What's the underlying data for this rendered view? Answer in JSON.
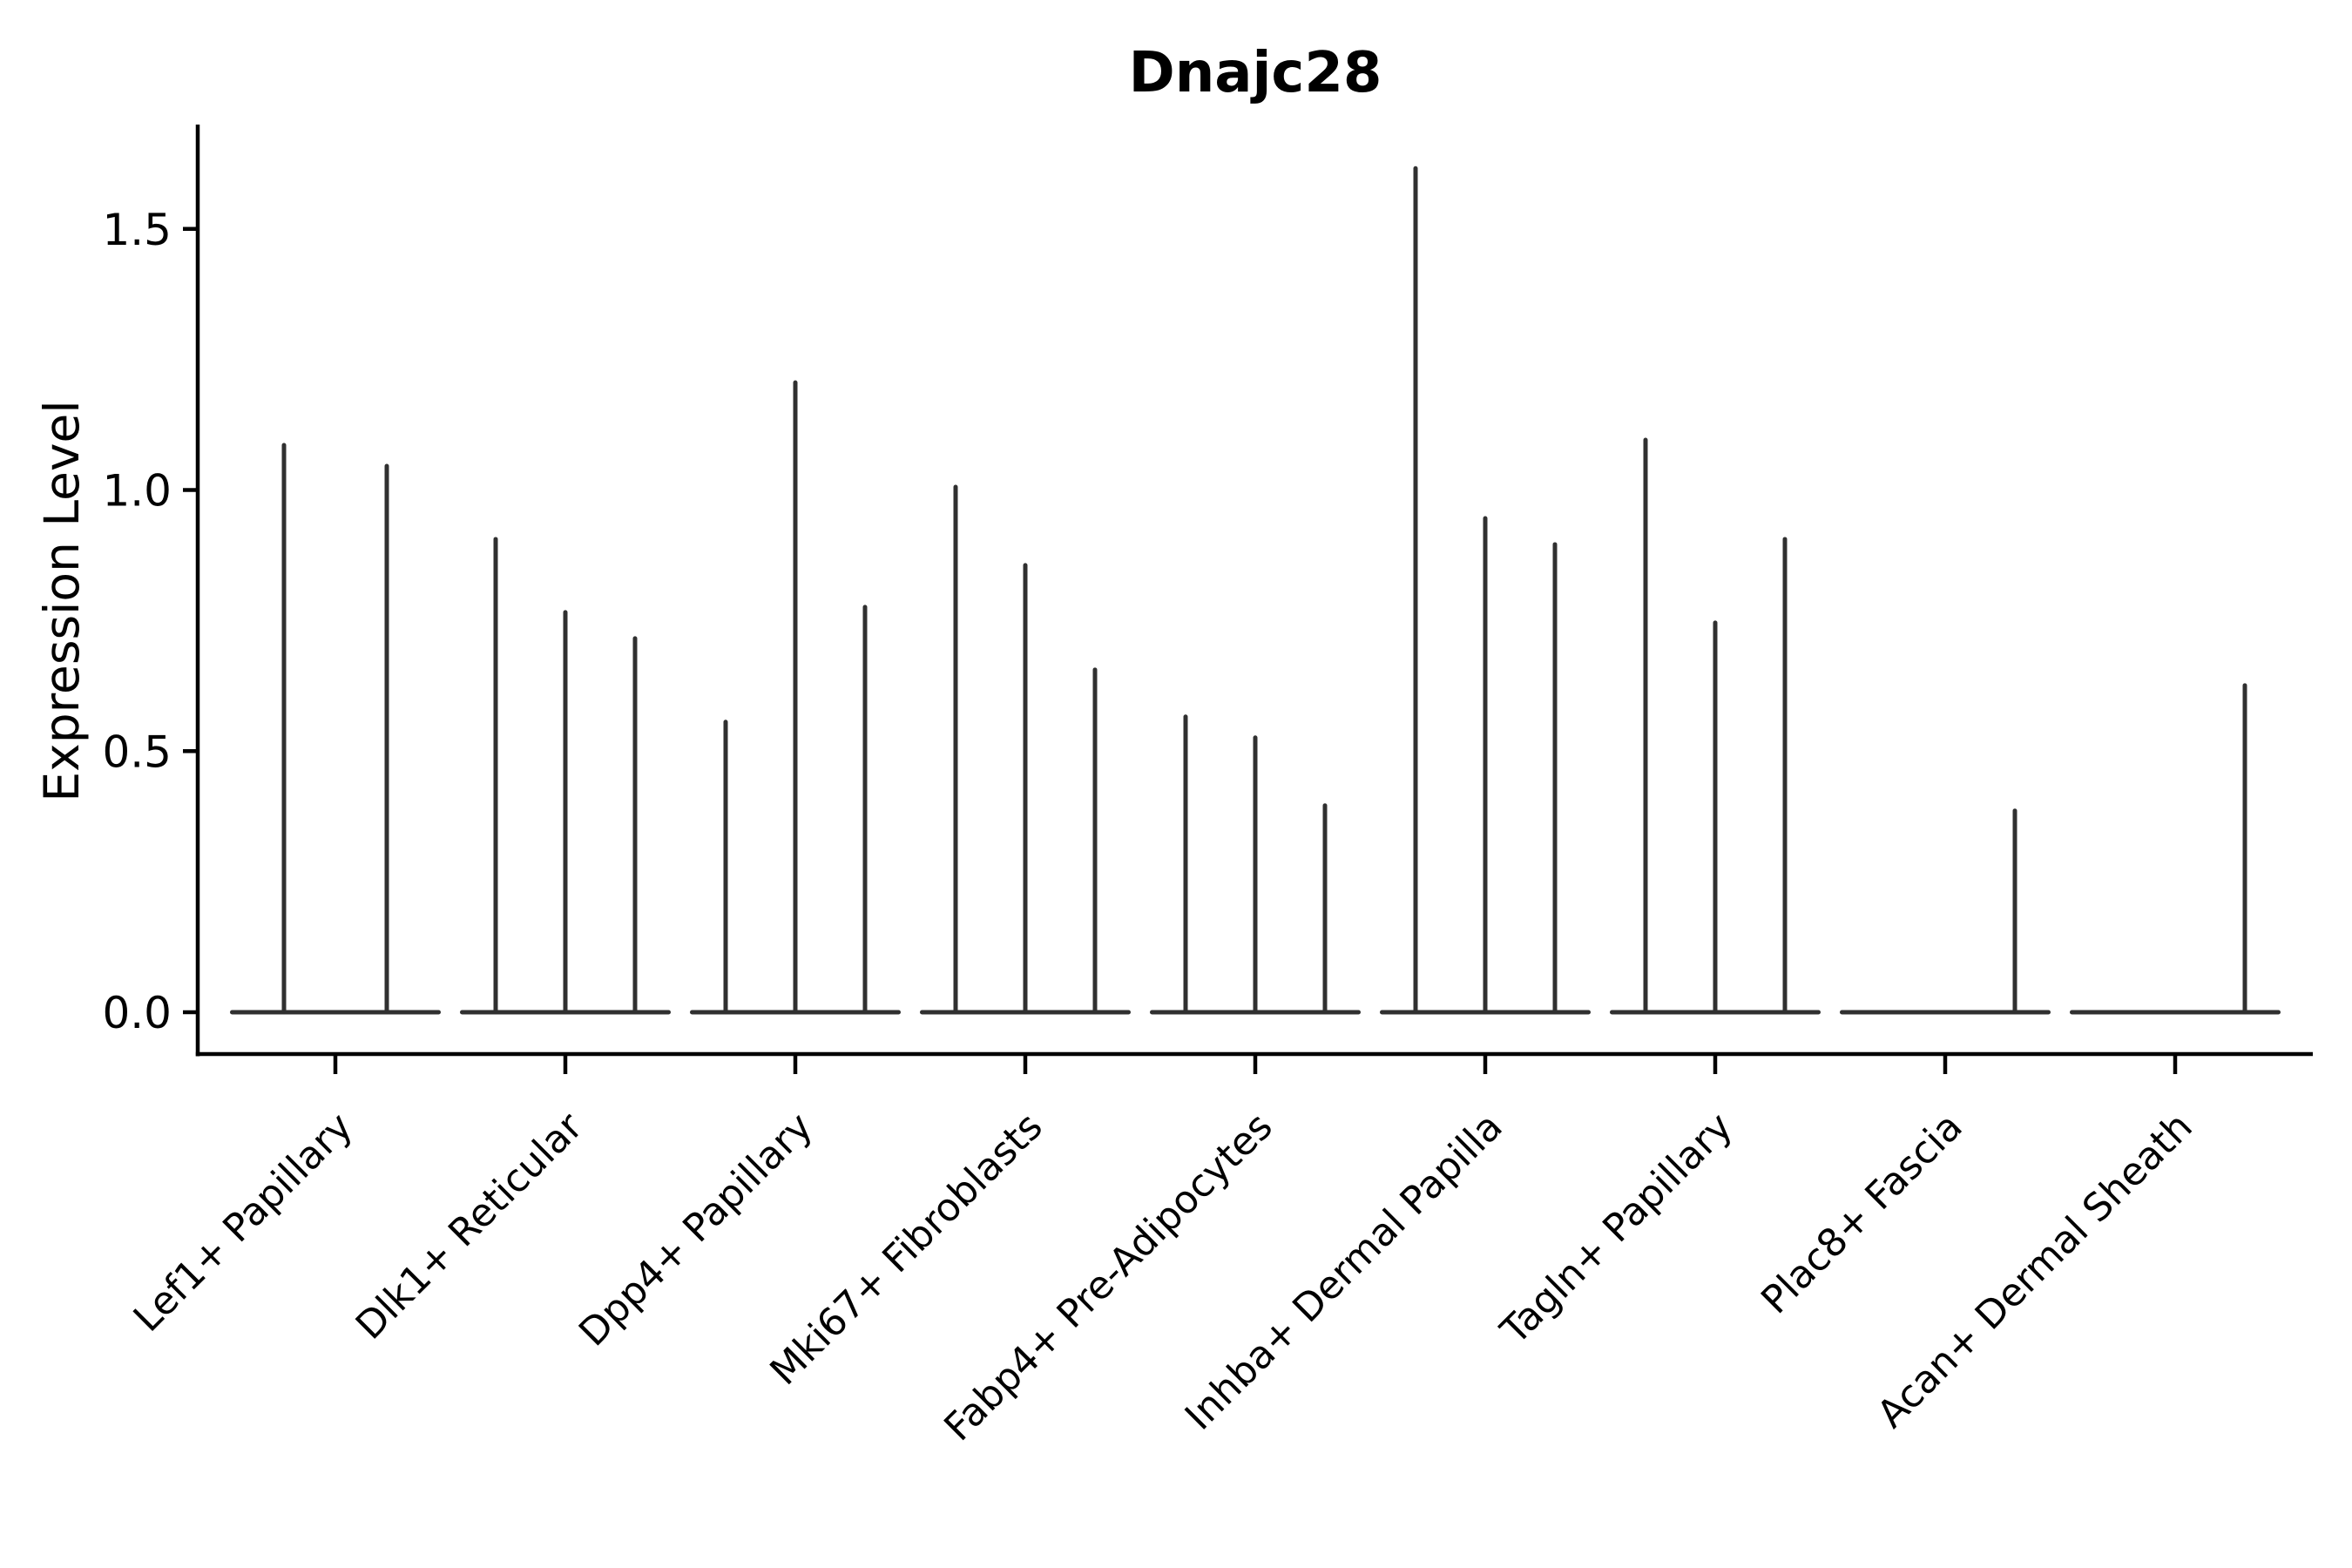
{
  "title": "Dnajc28",
  "chart_data": {
    "type": "violin",
    "title": "Dnajc28",
    "ylabel": "Expression Level",
    "xlabel": "",
    "yticks": [
      0.0,
      0.5,
      1.0,
      1.5
    ],
    "ytick_labels": [
      "0.0",
      "0.5",
      "1.0",
      "1.5"
    ],
    "ylim": [
      -0.08,
      1.7
    ],
    "grid": false,
    "legend": false,
    "x_tick_rotation_deg": 45,
    "categories": [
      "Lef1+ Papillary",
      "Dlk1+ Reticular",
      "Dpp4+ Papillary",
      "Mki67+ Fibroblasts",
      "Fabp4+ Pre-Adipocytes",
      "Inhba+ Dermal Papilla",
      "Tagln+ Papillary",
      "Plac8+ Fascia",
      "Acan+ Dermal Sheath"
    ],
    "series": [
      {
        "category": "Lef1+ Papillary",
        "violin_maxima": [
          1.09,
          1.05
        ]
      },
      {
        "category": "Dlk1+ Reticular",
        "violin_maxima": [
          0.91,
          0.77,
          0.72
        ]
      },
      {
        "category": "Dpp4+ Papillary",
        "violin_maxima": [
          0.56,
          1.21,
          0.78
        ]
      },
      {
        "category": "Mki67+ Fibroblasts",
        "violin_maxima": [
          1.01,
          0.86,
          0.66
        ]
      },
      {
        "category": "Fabp4+ Pre-Adipocytes",
        "violin_maxima": [
          0.57,
          0.53,
          0.4
        ]
      },
      {
        "category": "Inhba+ Dermal Papilla",
        "violin_maxima": [
          1.62,
          0.95,
          0.9
        ]
      },
      {
        "category": "Tagln+ Papillary",
        "violin_maxima": [
          1.1,
          0.75,
          0.91
        ]
      },
      {
        "category": "Plac8+ Fascia",
        "violin_maxima": [
          0.0,
          0.0,
          0.39
        ]
      },
      {
        "category": "Acan+ Dermal Sheath",
        "violin_maxima": [
          0.0,
          0.0,
          0.63
        ]
      }
    ],
    "colors": {
      "violin": "#303030",
      "axis": "#000000",
      "background": "#ffffff"
    }
  }
}
